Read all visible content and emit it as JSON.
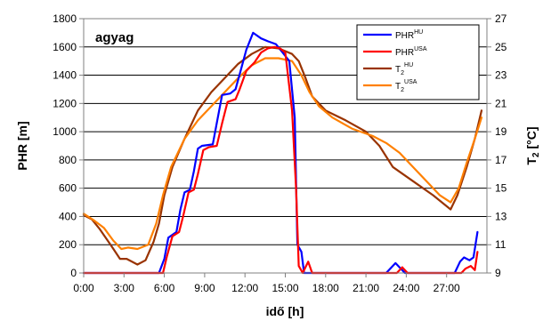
{
  "chart_data": {
    "type": "line",
    "panel_label": "agyag",
    "xlabel": "idő [h]",
    "ylabel_left": "PHR [m]",
    "ylabel_right_main": "T",
    "ylabel_right_sub": "2",
    "ylabel_right_unit": " [°C]",
    "xlim": [
      0,
      30
    ],
    "ylim_left": [
      0,
      1800
    ],
    "ylim_right": [
      9,
      27
    ],
    "x_ticks": [
      0,
      3,
      6,
      9,
      12,
      15,
      18,
      21,
      24,
      27
    ],
    "x_tick_labels": [
      "0:00",
      "3:00",
      "6:00",
      "9:00",
      "12:00",
      "15:00",
      "18:00",
      "21:00",
      "24:00",
      "27:00"
    ],
    "y_left_ticks": [
      0,
      200,
      400,
      600,
      800,
      1000,
      1200,
      1400,
      1600,
      1800
    ],
    "y_left_tick_labels": [
      "0",
      "200",
      "400",
      "600",
      "800",
      "1000",
      "1200",
      "1400",
      "1600",
      "1800"
    ],
    "y_right_ticks": [
      9,
      11,
      13,
      15,
      17,
      19,
      21,
      23,
      25,
      27
    ],
    "y_right_tick_labels": [
      "9",
      "11",
      "13",
      "15",
      "17",
      "19",
      "21",
      "23",
      "25",
      "27"
    ],
    "grid": "horizontal",
    "legend_position": "top-right",
    "colors": {
      "blue": "#0000ff",
      "red": "#ff0000",
      "brown": "#993300",
      "orange": "#ff8000"
    },
    "series": [
      {
        "name": "PHR",
        "name_sup": "HU",
        "axis": "left",
        "color": "#0000ff",
        "points": [
          [
            0,
            0
          ],
          [
            5.6,
            0
          ],
          [
            6.0,
            100
          ],
          [
            6.3,
            250
          ],
          [
            6.9,
            290
          ],
          [
            7.2,
            450
          ],
          [
            7.5,
            570
          ],
          [
            7.9,
            590
          ],
          [
            8.2,
            720
          ],
          [
            8.5,
            880
          ],
          [
            8.8,
            900
          ],
          [
            9.6,
            910
          ],
          [
            9.9,
            1060
          ],
          [
            10.3,
            1260
          ],
          [
            10.9,
            1270
          ],
          [
            11.3,
            1300
          ],
          [
            11.7,
            1440
          ],
          [
            12.1,
            1580
          ],
          [
            12.6,
            1700
          ],
          [
            13.2,
            1660
          ],
          [
            13.7,
            1640
          ],
          [
            14.3,
            1620
          ],
          [
            14.8,
            1560
          ],
          [
            15.3,
            1500
          ],
          [
            15.7,
            1100
          ],
          [
            15.9,
            200
          ],
          [
            16.2,
            150
          ],
          [
            16.4,
            0
          ],
          [
            22.5,
            0
          ],
          [
            23.2,
            70
          ],
          [
            23.9,
            0
          ],
          [
            27.6,
            0
          ],
          [
            28.0,
            80
          ],
          [
            28.3,
            110
          ],
          [
            28.7,
            90
          ],
          [
            29.0,
            110
          ],
          [
            29.3,
            290
          ]
        ]
      },
      {
        "name": "PHR",
        "name_sup": "USA",
        "axis": "left",
        "color": "#ff0000",
        "points": [
          [
            0,
            0
          ],
          [
            5.9,
            0
          ],
          [
            6.2,
            120
          ],
          [
            6.6,
            260
          ],
          [
            7.1,
            290
          ],
          [
            7.4,
            400
          ],
          [
            7.8,
            570
          ],
          [
            8.2,
            590
          ],
          [
            8.5,
            700
          ],
          [
            8.9,
            870
          ],
          [
            9.3,
            890
          ],
          [
            9.9,
            900
          ],
          [
            10.3,
            1060
          ],
          [
            10.7,
            1210
          ],
          [
            11.3,
            1230
          ],
          [
            11.6,
            1300
          ],
          [
            12.1,
            1430
          ],
          [
            12.7,
            1490
          ],
          [
            13.2,
            1560
          ],
          [
            13.7,
            1590
          ],
          [
            14.2,
            1600
          ],
          [
            14.6,
            1590
          ],
          [
            15.0,
            1560
          ],
          [
            15.5,
            1150
          ],
          [
            15.8,
            600
          ],
          [
            16.0,
            50
          ],
          [
            16.3,
            0
          ],
          [
            16.7,
            80
          ],
          [
            17.0,
            0
          ],
          [
            17.3,
            0
          ],
          [
            23.3,
            0
          ],
          [
            23.7,
            40
          ],
          [
            24.1,
            0
          ],
          [
            28.1,
            0
          ],
          [
            28.4,
            30
          ],
          [
            28.8,
            50
          ],
          [
            29.1,
            20
          ],
          [
            29.3,
            150
          ]
        ]
      },
      {
        "name": "T",
        "name_sup": "HU",
        "name_sub": "2",
        "axis": "right",
        "color": "#993300",
        "points": [
          [
            0,
            13.1
          ],
          [
            0.6,
            12.8
          ],
          [
            1.2,
            12.1
          ],
          [
            2.0,
            11.0
          ],
          [
            2.7,
            10.0
          ],
          [
            3.2,
            10.0
          ],
          [
            4.0,
            9.6
          ],
          [
            4.6,
            9.9
          ],
          [
            5.2,
            11.2
          ],
          [
            5.6,
            12.5
          ],
          [
            6.0,
            14.5
          ],
          [
            6.6,
            16.5
          ],
          [
            7.5,
            18.5
          ],
          [
            8.5,
            20.5
          ],
          [
            9.5,
            21.8
          ],
          [
            10.5,
            22.8
          ],
          [
            11.5,
            23.8
          ],
          [
            12.5,
            24.5
          ],
          [
            13.5,
            25.0
          ],
          [
            14.5,
            24.9
          ],
          [
            15.5,
            24.5
          ],
          [
            16.0,
            24.0
          ],
          [
            16.5,
            22.8
          ],
          [
            17.0,
            21.5
          ],
          [
            18.0,
            20.5
          ],
          [
            19.5,
            19.8
          ],
          [
            21.0,
            19.0
          ],
          [
            22.0,
            18.0
          ],
          [
            23.0,
            16.5
          ],
          [
            24.5,
            15.5
          ],
          [
            26.0,
            14.5
          ],
          [
            27.3,
            13.5
          ],
          [
            27.8,
            14.5
          ],
          [
            28.5,
            16.5
          ],
          [
            29.1,
            18.5
          ],
          [
            29.6,
            20.5
          ]
        ]
      },
      {
        "name": "T",
        "name_sup": "USA",
        "name_sub": "2",
        "axis": "right",
        "color": "#ff8000",
        "points": [
          [
            0,
            13.2
          ],
          [
            0.8,
            12.7
          ],
          [
            1.5,
            12.2
          ],
          [
            2.2,
            11.3
          ],
          [
            2.8,
            10.7
          ],
          [
            3.3,
            10.8
          ],
          [
            4.0,
            10.7
          ],
          [
            4.8,
            11.0
          ],
          [
            5.4,
            12.5
          ],
          [
            5.9,
            14.5
          ],
          [
            6.5,
            16.5
          ],
          [
            7.5,
            18.5
          ],
          [
            8.5,
            19.8
          ],
          [
            9.5,
            20.8
          ],
          [
            10.5,
            21.8
          ],
          [
            11.5,
            22.8
          ],
          [
            12.5,
            23.7
          ],
          [
            13.5,
            24.2
          ],
          [
            14.5,
            24.2
          ],
          [
            15.5,
            24.0
          ],
          [
            16.2,
            23.0
          ],
          [
            16.8,
            21.8
          ],
          [
            17.5,
            20.8
          ],
          [
            18.5,
            20.0
          ],
          [
            20.0,
            19.2
          ],
          [
            21.5,
            18.7
          ],
          [
            22.5,
            18.2
          ],
          [
            23.5,
            17.5
          ],
          [
            24.5,
            16.5
          ],
          [
            25.5,
            15.5
          ],
          [
            26.5,
            14.5
          ],
          [
            27.3,
            14.0
          ],
          [
            27.9,
            15.0
          ],
          [
            28.5,
            16.8
          ],
          [
            29.1,
            18.5
          ],
          [
            29.6,
            20.0
          ]
        ]
      }
    ]
  }
}
